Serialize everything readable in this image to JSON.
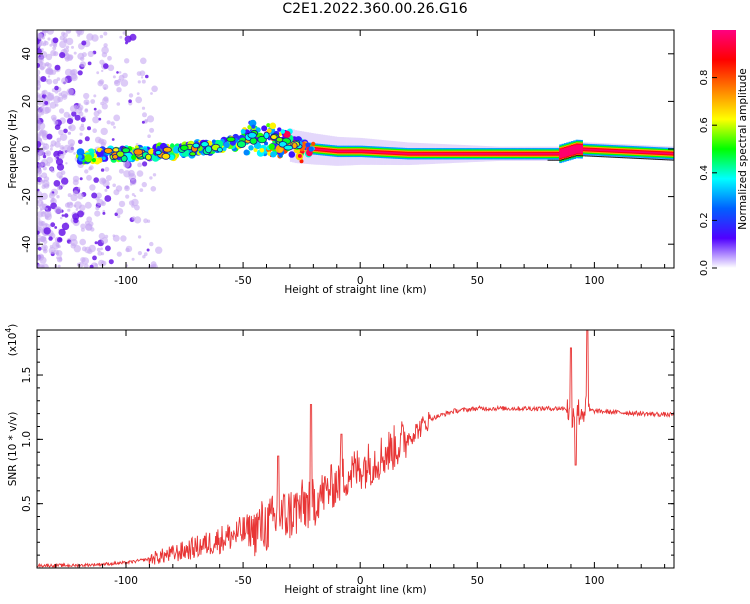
{
  "title": "C2E1.2022.360.00.26.G16",
  "chart_data": [
    {
      "type": "heatmap",
      "title": "C2E1.2022.360.00.26.G16",
      "xlabel": "Height of straight line (km)",
      "ylabel": "Frequency (Hz)",
      "xlim": [
        -138,
        134
      ],
      "ylim": [
        -50,
        50
      ],
      "xticks": [
        -100,
        -50,
        0,
        50,
        100
      ],
      "yticks": [
        -40,
        -20,
        0,
        20,
        40
      ],
      "colorbar": {
        "label": "Normalized spectral amplitude",
        "range": [
          0,
          1
        ],
        "ticks": [
          "0.0",
          "0.2",
          "0.4",
          "0.6",
          "0.8"
        ],
        "colormap": [
          "#ffffff",
          "#5000ff",
          "#0060ff",
          "#00ffff",
          "#00ff00",
          "#ffff00",
          "#ff8000",
          "#ff0000",
          "#ff0080"
        ]
      },
      "ridge": {
        "description_x_km": [
          -120,
          -100,
          -80,
          -60,
          -45,
          -35,
          -28,
          -20,
          -10,
          0,
          20,
          50,
          85,
          92,
          134
        ],
        "frequency_hz": [
          -3,
          -2,
          -1,
          1,
          5,
          3,
          1,
          0,
          -1,
          -1,
          -2,
          -2,
          -2,
          0,
          -2
        ]
      }
    },
    {
      "type": "line",
      "xlabel": "Height of straight line (km)",
      "ylabel": "SNR (10 * v/v)",
      "y_multiplier": "(x10",
      "y_multiplier_exp": "4",
      "y_multiplier_close": ")",
      "xlim": [
        -138,
        134
      ],
      "ylim": [
        0.0,
        1.85
      ],
      "xticks": [
        -100,
        -50,
        0,
        50,
        100
      ],
      "yticks": [
        0.5,
        1.0,
        1.5
      ],
      "series": [
        {
          "color": "#e83535",
          "x": [
            -138,
            -120,
            -110,
            -100,
            -90,
            -80,
            -70,
            -60,
            -50,
            -40,
            -35,
            -30,
            -25,
            -20,
            -15,
            -10,
            -5,
            0,
            5,
            10,
            15,
            20,
            25,
            30,
            40,
            50,
            60,
            70,
            80,
            88,
            90,
            92,
            94,
            96,
            100,
            110,
            120,
            134
          ],
          "values": [
            0.02,
            0.02,
            0.03,
            0.04,
            0.07,
            0.11,
            0.16,
            0.22,
            0.28,
            0.33,
            0.38,
            0.42,
            0.47,
            0.53,
            0.59,
            0.66,
            0.73,
            0.78,
            0.82,
            0.88,
            0.94,
            1.01,
            1.08,
            1.16,
            1.22,
            1.24,
            1.24,
            1.24,
            1.24,
            1.24,
            1.2,
            1.22,
            1.21,
            1.23,
            1.22,
            1.21,
            1.2,
            1.19
          ]
        }
      ],
      "peaks": [
        {
          "x": -35,
          "y": 0.87
        },
        {
          "x": -21,
          "y": 1.27
        },
        {
          "x": -8,
          "y": 1.04
        },
        {
          "x": 90,
          "y": 1.71
        },
        {
          "x": 92,
          "y": 0.8
        },
        {
          "x": 97,
          "y": 1.85
        }
      ]
    }
  ]
}
